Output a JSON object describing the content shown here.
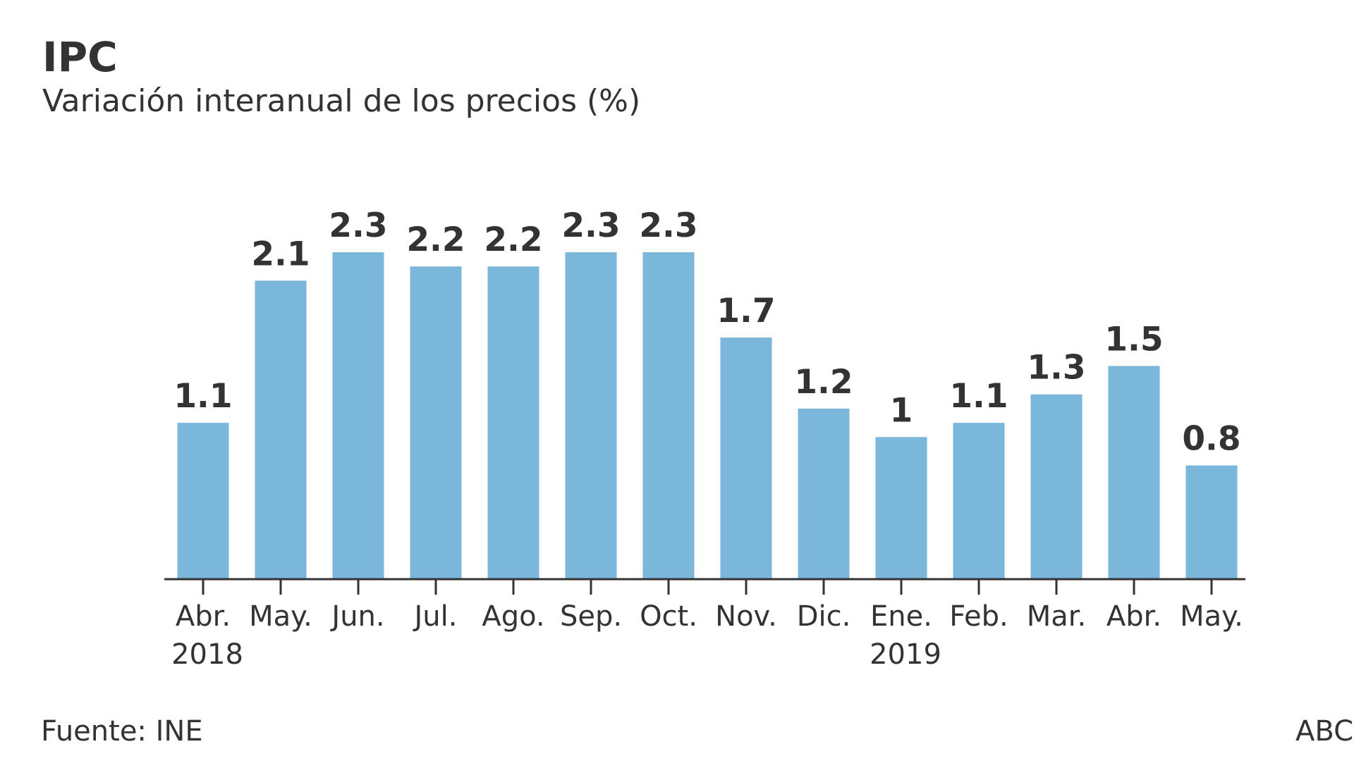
{
  "header": {
    "title": "IPC",
    "subtitle": "Variación interanual de los precios (%)"
  },
  "footer": {
    "source": "Fuente: INE",
    "credit": "ABC"
  },
  "colors": {
    "bar": "#7bb6db",
    "text": "#333333",
    "axis": "#333333"
  },
  "chart_data": {
    "type": "bar",
    "title": "IPC",
    "subtitle": "Variación interanual de los precios (%)",
    "categories": [
      "Abr.",
      "May.",
      "Jun.",
      "Jul.",
      "Ago.",
      "Sep.",
      "Oct.",
      "Nov.",
      "Dic.",
      "Ene.",
      "Feb.",
      "Mar.",
      "Abr.",
      "May."
    ],
    "values": [
      1.1,
      2.1,
      2.3,
      2.2,
      2.2,
      2.3,
      2.3,
      1.7,
      1.2,
      1,
      1.1,
      1.3,
      1.5,
      0.8
    ],
    "value_labels": [
      "1.1",
      "2.1",
      "2.3",
      "2.2",
      "2.2",
      "2.3",
      "2.3",
      "1.7",
      "1.2",
      "1",
      "1.1",
      "1.3",
      "1.5",
      "0.8"
    ],
    "year_labels": [
      {
        "category_index": 0,
        "text": "2018"
      },
      {
        "category_index": 9,
        "text": "2019"
      }
    ],
    "ylim": [
      0,
      2.3
    ],
    "grid": false,
    "legend": "none"
  }
}
